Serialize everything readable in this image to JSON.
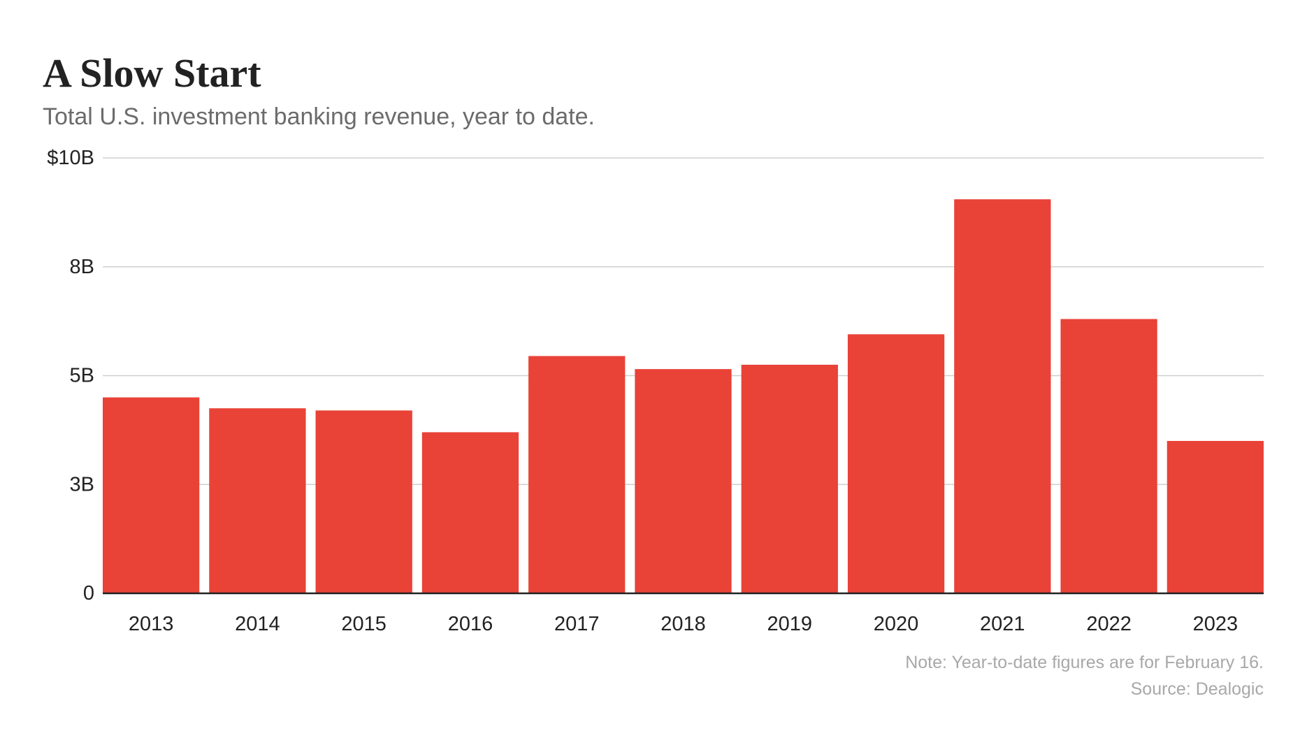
{
  "colors": {
    "bar": "#e94237",
    "text": "#222222",
    "subtitle": "#6b6b6b",
    "grid": "#cfcfcf",
    "footnote": "#a8a8a8"
  },
  "chart_data": {
    "type": "bar",
    "title": "A Slow Start",
    "subtitle": "Total U.S. investment banking revenue, year to date.",
    "xlabel": "",
    "ylabel": "",
    "categories": [
      "2013",
      "2014",
      "2015",
      "2016",
      "2017",
      "2018",
      "2019",
      "2020",
      "2021",
      "2022",
      "2023"
    ],
    "values": [
      4.5,
      4.25,
      4.2,
      3.7,
      5.45,
      5.15,
      5.25,
      5.95,
      9.05,
      6.3,
      3.5
    ],
    "ylim": [
      0,
      10
    ],
    "yticks": [
      {
        "value": 0,
        "label": "0"
      },
      {
        "value": 2.5,
        "label": "3B"
      },
      {
        "value": 5,
        "label": "5B"
      },
      {
        "value": 7.5,
        "label": "8B"
      },
      {
        "value": 10,
        "label": "$10B"
      }
    ],
    "grid": true,
    "note": "Note: Year-to-date figures are for February 16.",
    "source": "Source: Dealogic"
  }
}
